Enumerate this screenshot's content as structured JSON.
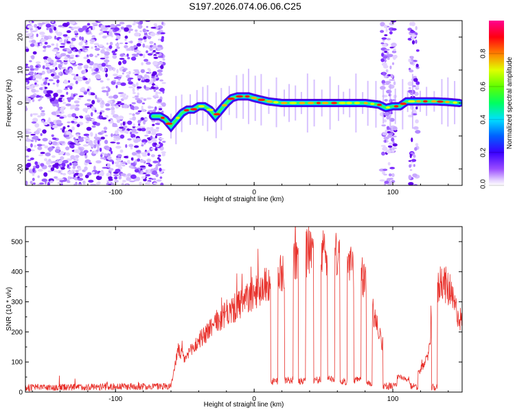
{
  "title": "S197.2026.074.06.06.C25",
  "chart_data": [
    {
      "type": "heatmap",
      "xlabel": "Height of straight line (km)",
      "ylabel": "Frequency (Hz)",
      "xlim": [
        -165,
        150
      ],
      "ylim": [
        -25,
        25
      ],
      "x_ticks": [
        -100,
        0,
        100
      ],
      "y_ticks": [
        -20,
        -10,
        0,
        10,
        20
      ],
      "ridge": {
        "x": [
          -73,
          -68,
          -64,
          -60,
          -56,
          -52,
          -48,
          -44,
          -40,
          -36,
          -32,
          -28,
          -24,
          -20,
          -16,
          -12,
          -8,
          -4,
          0,
          10,
          20,
          40,
          60,
          80,
          90,
          95,
          100,
          105,
          110,
          120,
          130,
          140,
          148
        ],
        "frequency": [
          -4,
          -4,
          -5,
          -7,
          -5,
          -3,
          -2,
          -2,
          -1,
          -1,
          -2,
          -4,
          -2,
          0,
          1.5,
          2,
          2,
          2,
          1.5,
          0.5,
          0,
          0,
          0,
          0,
          -0.5,
          -1.5,
          -1,
          -1,
          0.5,
          0.5,
          0.5,
          0.3,
          0
        ]
      },
      "noise_regions": [
        {
          "x_from": -165,
          "x_to": -65
        },
        {
          "x_from": 92,
          "x_to": 102
        },
        {
          "x_from": 112,
          "x_to": 118
        }
      ],
      "colorbar": {
        "label": "Normalized spectral amplitude",
        "range": [
          0,
          1
        ],
        "ticks": [
          "0.0",
          "0.2",
          "0.4",
          "0.6",
          "0.8"
        ]
      }
    },
    {
      "type": "line",
      "xlabel": "Height of straight line (km)",
      "ylabel": "SNR (10 * v/v)",
      "xlim": [
        -165,
        150
      ],
      "ylim": [
        0,
        550
      ],
      "x_ticks": [
        -100,
        0,
        100
      ],
      "y_ticks": [
        0,
        100,
        200,
        300,
        400,
        500
      ],
      "series": [
        {
          "name": "SNR",
          "color": "#e8302a",
          "envelope": {
            "x": [
              -165,
              -60,
              -55,
              -50,
              -40,
              -30,
              -20,
              -10,
              0,
              10,
              20,
              30,
              40,
              50,
              60,
              70,
              80,
              85,
              90,
              100,
              110,
              118,
              125,
              130,
              135,
              140,
              145,
              150
            ],
            "values": [
              15,
              20,
              140,
              110,
              170,
              220,
              260,
              290,
              330,
              360,
              400,
              440,
              470,
              460,
              450,
              420,
              370,
              280,
              200,
              60,
              40,
              60,
              110,
              300,
              380,
              340,
              280,
              230
            ]
          },
          "dips": [
            {
              "x_from": 12,
              "x_to": 17,
              "value": 35
            },
            {
              "x_from": 22,
              "x_to": 28,
              "value": 40
            },
            {
              "x_from": 32,
              "x_to": 37,
              "value": 35
            },
            {
              "x_from": 43,
              "x_to": 48,
              "value": 40
            },
            {
              "x_from": 53,
              "x_to": 58,
              "value": 45
            },
            {
              "x_from": 62,
              "x_to": 67,
              "value": 35
            },
            {
              "x_from": 72,
              "x_to": 77,
              "value": 40
            },
            {
              "x_from": 81,
              "x_to": 85,
              "value": 30
            },
            {
              "x_from": 93,
              "x_to": 103,
              "value": 20
            },
            {
              "x_from": 112,
              "x_to": 118,
              "value": 20
            },
            {
              "x_from": 128,
              "x_to": 132,
              "value": 15
            }
          ]
        }
      ]
    }
  ]
}
